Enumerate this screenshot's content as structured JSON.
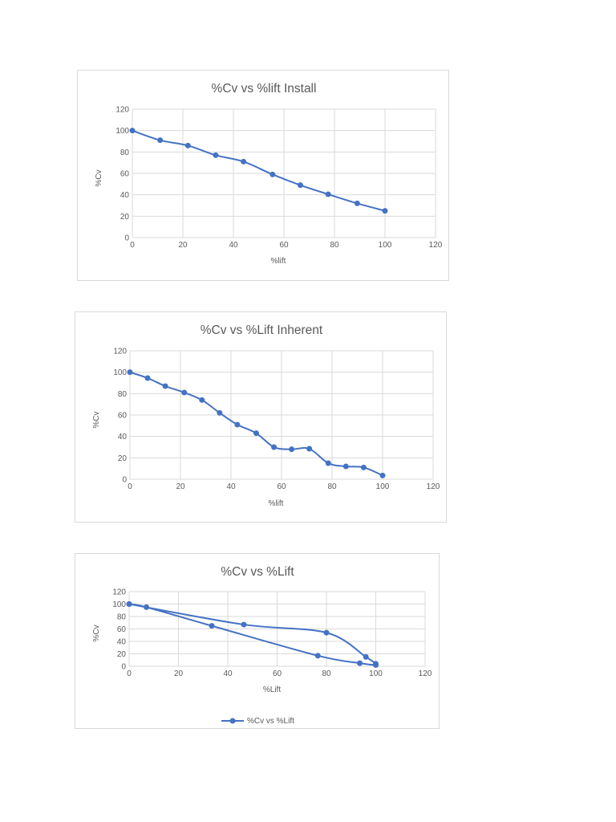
{
  "colors": {
    "series": "#4472c4",
    "grid": "#d9d9d9",
    "text": "#595959"
  },
  "chart_data": [
    {
      "type": "scatter",
      "title": "%Cv vs %lift Install",
      "xlabel": "%lift",
      "ylabel": "%Cv",
      "xlim": [
        0,
        120
      ],
      "ylim": [
        0,
        120
      ],
      "xticks": [
        0,
        20,
        40,
        60,
        80,
        100,
        120
      ],
      "yticks": [
        0,
        20,
        40,
        60,
        80,
        100,
        120
      ],
      "grid": true,
      "legend": false,
      "series": [
        {
          "points": [
            [
              0,
              100
            ],
            [
              11,
              91
            ],
            [
              22,
              86
            ],
            [
              33,
              77
            ],
            [
              44,
              71
            ],
            [
              55.5,
              59
            ],
            [
              66.5,
              49
            ],
            [
              77.5,
              40.5
            ],
            [
              89,
              32
            ],
            [
              100,
              25
            ]
          ]
        }
      ]
    },
    {
      "type": "scatter",
      "title": "%Cv vs %Lift Inherent",
      "xlabel": "%lift",
      "ylabel": "%Cv",
      "xlim": [
        0,
        120
      ],
      "ylim": [
        0,
        120
      ],
      "xticks": [
        0,
        20,
        40,
        60,
        80,
        100,
        120
      ],
      "yticks": [
        0,
        20,
        40,
        60,
        80,
        100,
        120
      ],
      "grid": true,
      "legend": false,
      "series": [
        {
          "points": [
            [
              0,
              100
            ],
            [
              7,
              94.5
            ],
            [
              14,
              87
            ],
            [
              21.5,
              81
            ],
            [
              28.5,
              74
            ],
            [
              35.5,
              62
            ],
            [
              42.5,
              51
            ],
            [
              50,
              43
            ],
            [
              57,
              30
            ],
            [
              64,
              28
            ],
            [
              71,
              28.5
            ],
            [
              78.5,
              15
            ],
            [
              85.5,
              12
            ],
            [
              92.5,
              11
            ],
            [
              100,
              3.5
            ]
          ]
        }
      ]
    },
    {
      "type": "scatter",
      "title": "%Cv vs %Lift",
      "xlabel": "%Lift",
      "ylabel": "%Cv",
      "xlim": [
        0,
        120
      ],
      "ylim": [
        0,
        120
      ],
      "xticks": [
        0,
        20,
        40,
        60,
        80,
        100,
        120
      ],
      "yticks": [
        0,
        20,
        40,
        60,
        80,
        100,
        120
      ],
      "grid": true,
      "legend": "bottom",
      "series": [
        {
          "name": "%Cv vs %Lift",
          "points": [
            [
              0,
              100
            ],
            [
              7,
              95
            ],
            [
              33.5,
              65
            ],
            [
              76.5,
              17
            ],
            [
              93.5,
              5
            ],
            [
              100,
              2
            ],
            [
              100,
              4
            ],
            [
              96,
              15
            ],
            [
              80,
              54
            ],
            [
              46.5,
              67
            ],
            [
              0,
              100
            ]
          ]
        }
      ]
    }
  ]
}
